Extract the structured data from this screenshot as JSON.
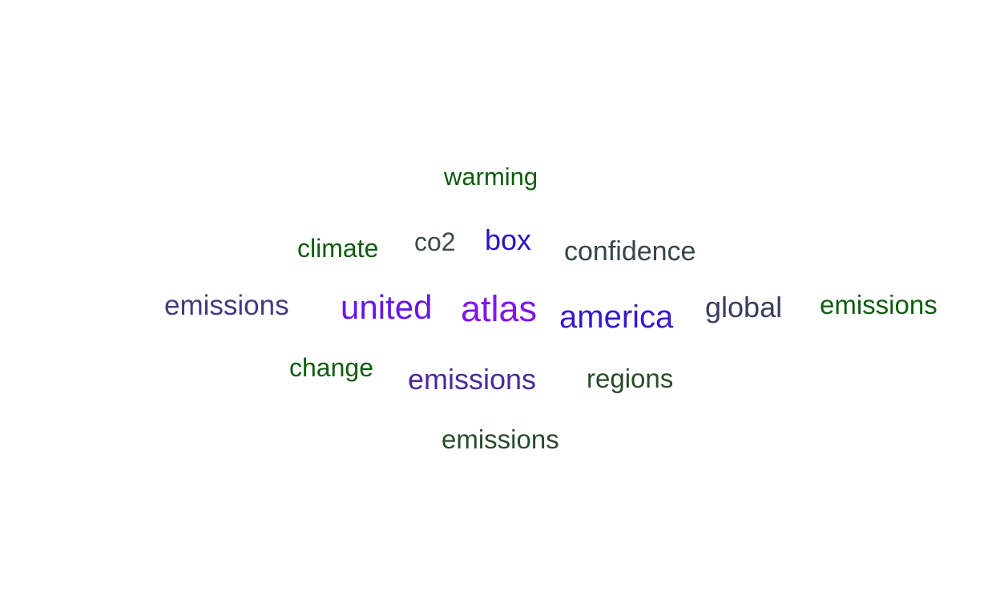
{
  "word_cloud": {
    "words": [
      {
        "text": "warming",
        "color": "#0f5c0f"
      },
      {
        "text": "climate",
        "color": "#0f5c0f"
      },
      {
        "text": "co2",
        "color": "#3a4a48"
      },
      {
        "text": "box",
        "color": "#2a14c8"
      },
      {
        "text": "confidence",
        "color": "#34464a"
      },
      {
        "text": "emissions",
        "color": "#443a80"
      },
      {
        "text": "united",
        "color": "#6418ea"
      },
      {
        "text": "atlas",
        "color": "#8414ea"
      },
      {
        "text": "america",
        "color": "#3818d0"
      },
      {
        "text": "global",
        "color": "#3a3c5c"
      },
      {
        "text": "emissions",
        "color": "#0f5c0f"
      },
      {
        "text": "change",
        "color": "#0f5c0f"
      },
      {
        "text": "emissions",
        "color": "#4a2a9c"
      },
      {
        "text": "regions",
        "color": "#2a4a2a"
      },
      {
        "text": "emissions",
        "color": "#2a4a2a"
      }
    ]
  }
}
